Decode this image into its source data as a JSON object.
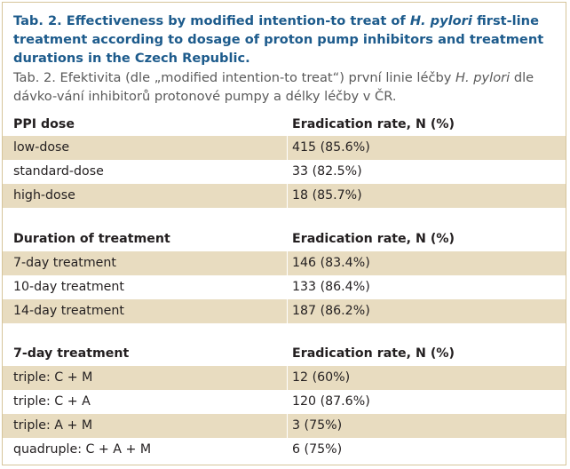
{
  "caption": {
    "en_prefix": "Tab. 2. Effectiveness by modified intention-to treat of ",
    "en_italic": "H. pylori",
    "en_suffix": " first-line treatment according to dosage of proton pump inhibitors and treatment durations in the Czech Republic.",
    "cz_prefix": "Tab. 2. Efektivita (dle „modified intention-to treat“) první linie léčby ",
    "cz_italic": "H. pylori",
    "cz_suffix": " dle dávko-vání inhibitorů protonové pumpy a délky léčby v ČR."
  },
  "sections": [
    {
      "header": "PPI dose",
      "value_header": "Eradication rate, N (%)",
      "rows": [
        {
          "label": "low-dose",
          "value": "415 (85.6%)"
        },
        {
          "label": "standard-dose",
          "value": "33 (82.5%)"
        },
        {
          "label": "high-dose",
          "value": "18 (85.7%)"
        }
      ]
    },
    {
      "header": "Duration of treatment",
      "value_header": "Eradication rate, N (%)",
      "rows": [
        {
          "label": "7-day treatment",
          "value": "146 (83.4%)"
        },
        {
          "label": "10-day treatment",
          "value": "133 (86.4%)"
        },
        {
          "label": "14-day treatment",
          "value": "187 (86.2%)"
        }
      ]
    },
    {
      "header": "7-day treatment",
      "value_header": "Eradication rate, N (%)",
      "rows": [
        {
          "label": "triple: C + M",
          "value": "12 (60%)"
        },
        {
          "label": "triple: C + A",
          "value": "120 (87.6%)"
        },
        {
          "label": "triple: A + M",
          "value": "3 (75%)"
        },
        {
          "label": "quadruple: C + A + M",
          "value": "6 (75%)"
        }
      ]
    }
  ],
  "colors": {
    "title": "#1d5b8c",
    "row_shade": "#e8dcc0",
    "border": "#d6c59a"
  }
}
